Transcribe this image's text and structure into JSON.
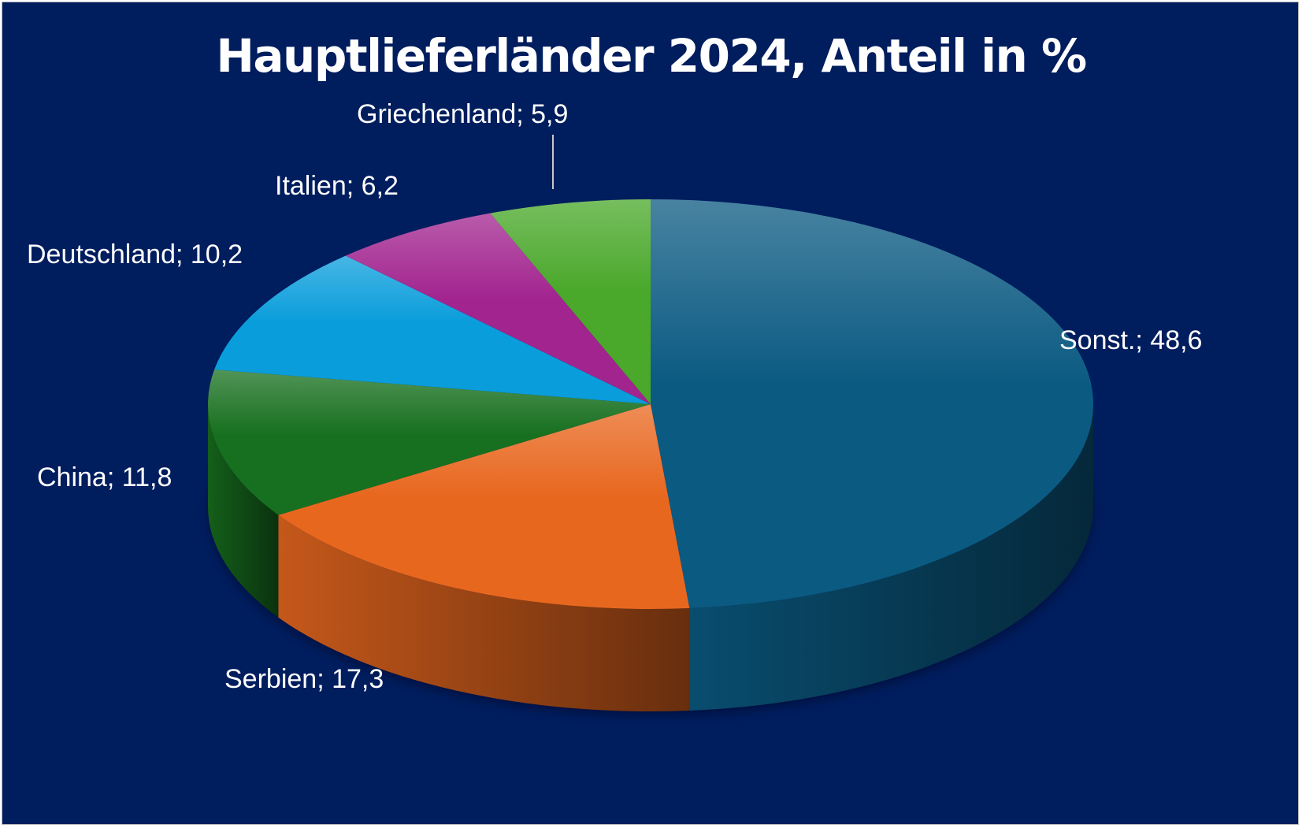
{
  "chart_data": {
    "type": "pie",
    "title": "Hauptlieferländer 2024, Anteil in %",
    "slices": [
      {
        "name": "Sonst.",
        "value": 48.6,
        "label": "Sonst.; 48,6",
        "color": "#0b5a82"
      },
      {
        "name": "Serbien",
        "value": 17.3,
        "label": "Serbien; 17,3",
        "color": "#e8671f"
      },
      {
        "name": "China",
        "value": 11.8,
        "label": "China; 11,8",
        "color": "#17701f"
      },
      {
        "name": "Deutschland",
        "value": 10.2,
        "label": "Deutschland; 10,2",
        "color": "#0a9ddb"
      },
      {
        "name": "Italien",
        "value": 6.2,
        "label": "Italien; 6,2",
        "color": "#a2248f"
      },
      {
        "name": "Griechenland",
        "value": 5.9,
        "label": "Griechenland; 5,9",
        "color": "#4aa82a"
      }
    ],
    "legend": "none",
    "style": "3d",
    "background_color": "#001d5e"
  }
}
